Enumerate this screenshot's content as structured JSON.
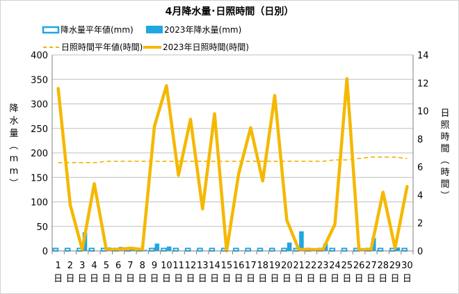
{
  "chart_data": {
    "type": "bar+line",
    "title": "4月降水量･日照時間（日別）",
    "categories": [
      "1日",
      "2日",
      "3日",
      "4日",
      "5日",
      "6日",
      "7日",
      "8日",
      "9日",
      "10日",
      "11日",
      "12日",
      "13日",
      "14日",
      "15日",
      "16日",
      "17日",
      "18日",
      "19日",
      "20日",
      "21日",
      "22日",
      "23日",
      "24日",
      "25日",
      "26日",
      "27日",
      "28日",
      "29日",
      "30日"
    ],
    "category_numbers": [
      "1",
      "2",
      "3",
      "4",
      "5",
      "6",
      "7",
      "8",
      "9",
      "10",
      "11",
      "12",
      "13",
      "14",
      "15",
      "16",
      "17",
      "18",
      "19",
      "20",
      "21",
      "22",
      "23",
      "24",
      "25",
      "26",
      "27",
      "28",
      "29",
      "30"
    ],
    "category_suffix": "日",
    "y_left": {
      "label": "降水量（mm）",
      "ticks": [
        "0",
        "50",
        "100",
        "150",
        "200",
        "250",
        "300",
        "350",
        "400"
      ],
      "range": [
        0,
        400
      ]
    },
    "y_right": {
      "label": "日照時間（時間）",
      "ticks": [
        "0",
        "2",
        "4",
        "6",
        "8",
        "10",
        "12",
        "14"
      ],
      "range": [
        0,
        14
      ]
    },
    "grid": "horizontal",
    "legend_position": "top",
    "series": [
      {
        "name": "降水量平年値(mm)",
        "kind": "bar-outline",
        "axis": "left",
        "color": "#1fa7e0",
        "values": [
          5,
          5,
          5,
          5,
          5,
          5,
          5,
          5,
          5,
          5,
          5,
          5,
          5,
          5,
          5,
          5,
          5,
          5,
          5,
          5,
          5,
          5,
          5,
          5,
          5,
          5,
          5,
          5,
          5,
          5
        ]
      },
      {
        "name": "2023年降水量(mm)",
        "kind": "bar",
        "axis": "left",
        "color": "#1fa7e0",
        "values": [
          0,
          0,
          38,
          0,
          7,
          8,
          3,
          2,
          15,
          9,
          0,
          0,
          0,
          0,
          0,
          1,
          0,
          0,
          0,
          17,
          40,
          2,
          15,
          0,
          0,
          0,
          26,
          0,
          7,
          0
        ]
      },
      {
        "name": "日照時間平年値(時間)",
        "kind": "dashed-line",
        "axis": "right",
        "color": "#f0b400",
        "values": [
          6.3,
          6.3,
          6.3,
          6.3,
          6.4,
          6.4,
          6.4,
          6.4,
          6.4,
          6.4,
          6.4,
          6.4,
          6.4,
          6.4,
          6.4,
          6.4,
          6.4,
          6.4,
          6.4,
          6.4,
          6.4,
          6.4,
          6.4,
          6.5,
          6.5,
          6.6,
          6.7,
          6.7,
          6.7,
          6.6
        ]
      },
      {
        "name": "2023年日照時間(時間)",
        "kind": "line",
        "axis": "right",
        "color": "#f5b800",
        "values": [
          11.6,
          3.3,
          0.1,
          4.8,
          0.1,
          0.1,
          0.2,
          0.1,
          8.9,
          11.8,
          5.4,
          9.4,
          3.0,
          9.8,
          0.0,
          5.5,
          8.8,
          5.0,
          11.1,
          2.2,
          0.1,
          0.1,
          0.1,
          1.9,
          12.3,
          0.1,
          0.1,
          4.2,
          0.2,
          4.6
        ]
      }
    ]
  }
}
